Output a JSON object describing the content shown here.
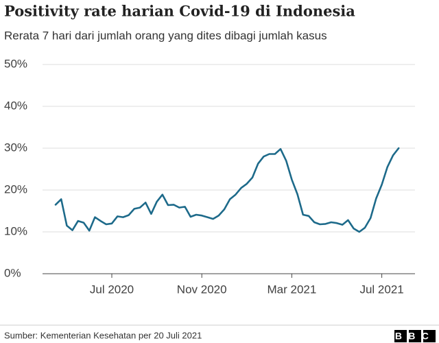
{
  "chart_data": {
    "type": "line",
    "title": "Positivity rate harian Covid-19 di Indonesia",
    "subtitle": "Rerata 7 hari dari jumlah orang yang dites dibagi jumlah kasus",
    "categories": [
      null,
      null,
      null,
      null,
      null,
      null,
      null,
      null,
      null,
      null,
      "Jul 2020",
      null,
      null,
      null,
      null,
      null,
      null,
      null,
      null,
      null,
      null,
      null,
      null,
      null,
      null,
      null,
      "Nov 2020",
      null,
      null,
      null,
      null,
      null,
      null,
      null,
      null,
      null,
      null,
      null,
      null,
      null,
      null,
      null,
      "Mar 2021",
      null,
      null,
      null,
      null,
      null,
      null,
      null,
      null,
      null,
      null,
      null,
      null,
      null,
      null,
      null,
      "Jul 2021",
      null,
      null,
      null
    ],
    "series": [
      {
        "color": "#1d6a8a",
        "values": [
          16.5,
          17.8,
          11.5,
          10.4,
          12.6,
          12.2,
          10.3,
          13.5,
          12.6,
          11.8,
          12,
          13.7,
          13.5,
          14,
          15.5,
          15.8,
          17,
          14.3,
          17.2,
          18.9,
          16.4,
          16.5,
          15.8,
          16,
          13.6,
          14.1,
          13.9,
          13.5,
          13.1,
          13.9,
          15.4,
          17.8,
          18.9,
          20.5,
          21.5,
          23,
          26.3,
          28,
          28.6,
          28.6,
          29.8,
          27,
          22.5,
          19,
          14.1,
          13.8,
          12.3,
          11.8,
          11.9,
          12.3,
          12.1,
          11.7,
          12.8,
          10.8,
          10,
          11,
          13.3,
          18,
          21.3,
          25.5,
          28.3,
          30
        ]
      }
    ],
    "ylim": [
      0,
      50
    ],
    "yticks": [
      {
        "value": 0,
        "label": "0%"
      },
      {
        "value": 10,
        "label": "10%"
      },
      {
        "value": 20,
        "label": "20%"
      },
      {
        "value": 30,
        "label": "30%"
      },
      {
        "value": 40,
        "label": "40%"
      },
      {
        "value": 50,
        "label": "50%"
      }
    ],
    "grid": true,
    "source": "Sumber: Kementerian Kesehatan per 20 Juli 2021",
    "logo": "BBC"
  }
}
